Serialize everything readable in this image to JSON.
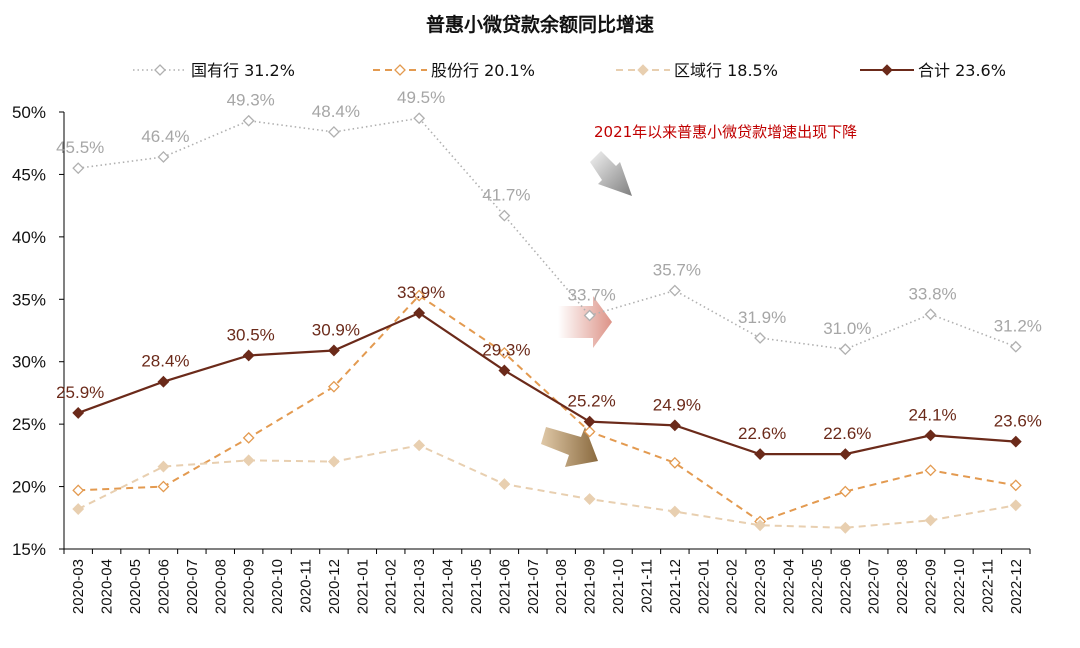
{
  "chart_data": {
    "type": "line",
    "title": "普惠小微贷款余额同比增速",
    "categories": [
      "2020-03",
      "2020-04",
      "2020-05",
      "2020-06",
      "2020-07",
      "2020-08",
      "2020-09",
      "2020-10",
      "2020-11",
      "2020-12",
      "2021-01",
      "2021-02",
      "2021-03",
      "2021-04",
      "2021-05",
      "2021-06",
      "2021-07",
      "2021-08",
      "2021-09",
      "2021-10",
      "2021-11",
      "2021-12",
      "2022-01",
      "2022-02",
      "2022-03",
      "2022-04",
      "2022-05",
      "2022-06",
      "2022-07",
      "2022-08",
      "2022-09",
      "2022-10",
      "2022-11",
      "2022-12"
    ],
    "y_ticks": [
      "15%",
      "20%",
      "25%",
      "30%",
      "35%",
      "40%",
      "45%",
      "50%"
    ],
    "ylim": [
      15,
      50
    ],
    "series": [
      {
        "key": "guoyou",
        "name": "国有行",
        "legend_label": "国有行  31.2%",
        "color": "#b0b0b0",
        "style": "dotted",
        "marker": "diamond-open",
        "show_labels": true,
        "label_color": "#a6a6a6",
        "points": [
          [
            "2020-03",
            45.5
          ],
          [
            "2020-06",
            46.4
          ],
          [
            "2020-09",
            49.3
          ],
          [
            "2020-12",
            48.4
          ],
          [
            "2021-03",
            49.5
          ],
          [
            "2021-06",
            41.7
          ],
          [
            "2021-09",
            33.7
          ],
          [
            "2021-12",
            35.7
          ],
          [
            "2022-03",
            31.9
          ],
          [
            "2022-06",
            31.0
          ],
          [
            "2022-09",
            33.8
          ],
          [
            "2022-12",
            31.2
          ]
        ],
        "labels": [
          "45.5%",
          "46.4%",
          "49.3%",
          "48.4%",
          "49.5%",
          "41.7%",
          "33.7%",
          "35.7%",
          "31.9%",
          "31.0%",
          "33.8%",
          "31.2%"
        ]
      },
      {
        "key": "gufen",
        "name": "股份行",
        "legend_label": "股份行  20.1%",
        "color": "#e39a50",
        "style": "dashed",
        "marker": "diamond-open",
        "show_labels": false,
        "points": [
          [
            "2020-03",
            19.7
          ],
          [
            "2020-06",
            20.0
          ],
          [
            "2020-09",
            23.9
          ],
          [
            "2020-12",
            28.0
          ],
          [
            "2021-03",
            35.3
          ],
          [
            "2021-06",
            30.7
          ],
          [
            "2021-09",
            24.4
          ],
          [
            "2021-12",
            21.9
          ],
          [
            "2022-03",
            17.2
          ],
          [
            "2022-06",
            19.6
          ],
          [
            "2022-09",
            21.3
          ],
          [
            "2022-12",
            20.1
          ]
        ]
      },
      {
        "key": "quyu",
        "name": "区域行",
        "legend_label": "区域行 18.5%",
        "color": "#e8cfb0",
        "style": "dashed",
        "marker": "diamond-filled",
        "show_labels": false,
        "points": [
          [
            "2020-03",
            18.2
          ],
          [
            "2020-06",
            21.6
          ],
          [
            "2020-09",
            22.1
          ],
          [
            "2020-12",
            22.0
          ],
          [
            "2021-03",
            23.3
          ],
          [
            "2021-06",
            20.2
          ],
          [
            "2021-09",
            19.0
          ],
          [
            "2021-12",
            18.0
          ],
          [
            "2022-03",
            16.9
          ],
          [
            "2022-06",
            16.7
          ],
          [
            "2022-09",
            17.3
          ],
          [
            "2022-12",
            18.5
          ]
        ]
      },
      {
        "key": "heji",
        "name": "合计",
        "legend_label": "合计 23.6%",
        "color": "#6b2a1a",
        "style": "solid",
        "marker": "diamond-filled",
        "show_labels": true,
        "label_color": "#6b2a1a",
        "points": [
          [
            "2020-03",
            25.9
          ],
          [
            "2020-06",
            28.4
          ],
          [
            "2020-09",
            30.5
          ],
          [
            "2020-12",
            30.9
          ],
          [
            "2021-03",
            33.9
          ],
          [
            "2021-06",
            29.3
          ],
          [
            "2021-09",
            25.2
          ],
          [
            "2021-12",
            24.9
          ],
          [
            "2022-03",
            22.6
          ],
          [
            "2022-06",
            22.6
          ],
          [
            "2022-09",
            24.1
          ],
          [
            "2022-12",
            23.6
          ]
        ],
        "labels": [
          "25.9%",
          "28.4%",
          "30.5%",
          "30.9%",
          "33.9%",
          "29.3%",
          "25.2%",
          "24.9%",
          "22.6%",
          "22.6%",
          "24.1%",
          "23.6%"
        ]
      }
    ],
    "annotation": "2021年以来普惠小微贷款增速出现下降",
    "legend_position": "top",
    "grid": false
  }
}
